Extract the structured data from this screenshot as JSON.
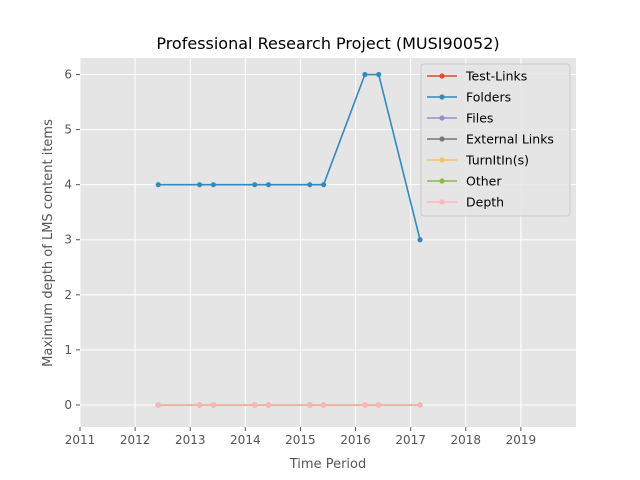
{
  "chart_data": {
    "type": "line",
    "title": "Professional Research Project (MUSI90052)",
    "xlabel": "Time Period",
    "ylabel": "Maximum depth of LMS content items",
    "xlim": [
      2011,
      2020
    ],
    "ylim": [
      -0.4,
      6.3
    ],
    "x_ticks": [
      2011,
      2012,
      2013,
      2014,
      2015,
      2016,
      2017,
      2018,
      2019
    ],
    "x_tick_labels": [
      "2011",
      "2012",
      "2013",
      "2014",
      "2015",
      "2016",
      "2017",
      "2018",
      "2019"
    ],
    "y_ticks": [
      0,
      1,
      2,
      3,
      4,
      5,
      6
    ],
    "y_tick_labels": [
      "0",
      "1",
      "2",
      "3",
      "4",
      "5",
      "6"
    ],
    "grid": true,
    "legend_position": "top-right",
    "x": [
      2012.42,
      2013.17,
      2013.42,
      2014.17,
      2014.42,
      2015.17,
      2015.42,
      2016.17,
      2016.42,
      2017.17
    ],
    "series": [
      {
        "name": "Test-Links",
        "color": "#E24A33",
        "values": [
          0,
          0,
          0,
          0,
          0,
          0,
          0,
          0,
          0,
          0
        ]
      },
      {
        "name": "Folders",
        "color": "#348ABD",
        "values": [
          4,
          4,
          4,
          4,
          4,
          4,
          4,
          6,
          6,
          3
        ]
      },
      {
        "name": "Files",
        "color": "#988ED5",
        "values": [
          0,
          0,
          0,
          0,
          0,
          0,
          0,
          0,
          0,
          0
        ]
      },
      {
        "name": "External Links",
        "color": "#777777",
        "values": [
          0,
          0,
          0,
          0,
          0,
          0,
          0,
          0,
          0,
          0
        ]
      },
      {
        "name": "TurnItIn(s)",
        "color": "#FBC15E",
        "values": [
          0,
          0,
          0,
          0,
          0,
          0,
          0,
          0,
          0,
          0
        ]
      },
      {
        "name": "Other",
        "color": "#8EBA42",
        "values": [
          0,
          0,
          0,
          0,
          0,
          0,
          0,
          0,
          0,
          0
        ]
      },
      {
        "name": "Depth",
        "color": "#FFB5B8",
        "values": [
          0,
          0,
          0,
          0,
          0,
          0,
          0,
          0,
          0,
          0
        ]
      }
    ]
  }
}
